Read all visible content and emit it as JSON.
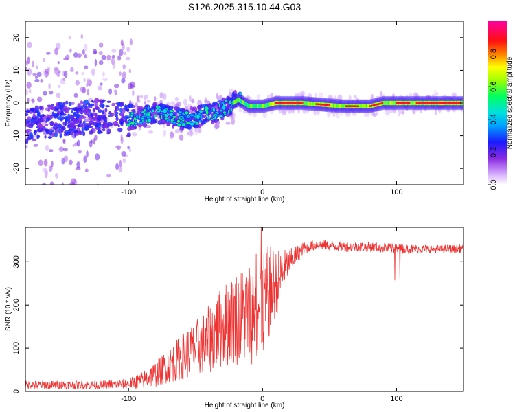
{
  "title": "S126.2025.315.10.44.G03",
  "chart_data": [
    {
      "type": "heatmap",
      "xlabel": "Height of straight line (km)",
      "ylabel": "Frequency (Hz)",
      "xlim": [
        -177,
        150
      ],
      "ylim": [
        -25,
        25
      ],
      "xticks": [
        -100,
        0,
        100
      ],
      "yticks": [
        -20,
        -10,
        0,
        10,
        20
      ],
      "colorbar": {
        "label": "Normalized spectral amplitude",
        "range": [
          0,
          1
        ],
        "ticks": [
          0.0,
          0.2,
          0.4,
          0.6,
          0.8
        ]
      },
      "ridge": {
        "description_points_x": [
          -177,
          -150,
          -120,
          -100,
          -80,
          -60,
          -45,
          -30,
          -18,
          -10,
          0,
          10,
          30,
          60,
          80,
          90,
          100,
          120,
          150
        ],
        "description_points_freq": [
          -7,
          -5,
          -4,
          -5,
          -3,
          -5,
          -4,
          -2,
          1,
          -1,
          -1,
          0,
          0,
          -1,
          -1,
          0,
          0,
          0,
          0
        ]
      }
    },
    {
      "type": "line",
      "xlabel": "Height of straight line (km)",
      "ylabel": "SNR (10 * v/v)",
      "xlim": [
        -177,
        150
      ],
      "ylim": [
        0,
        380
      ],
      "xticks": [
        -100,
        0,
        100
      ],
      "yticks": [
        0,
        100,
        200,
        300
      ],
      "color": "#ee3333",
      "series": [
        {
          "name": "SNR",
          "envelope_x": [
            -177,
            -150,
            -120,
            -100,
            -90,
            -80,
            -70,
            -60,
            -50,
            -40,
            -30,
            -20,
            -10,
            0,
            5,
            10,
            20,
            30,
            40,
            60,
            80,
            100,
            120,
            150
          ],
          "envelope_mean": [
            15,
            15,
            15,
            18,
            25,
            40,
            60,
            80,
            100,
            120,
            150,
            170,
            180,
            200,
            230,
            250,
            300,
            330,
            340,
            335,
            335,
            330,
            330,
            330
          ],
          "envelope_spread": [
            10,
            10,
            10,
            12,
            20,
            30,
            40,
            55,
            65,
            80,
            95,
            110,
            120,
            130,
            110,
            80,
            30,
            15,
            12,
            12,
            12,
            12,
            10,
            10
          ]
        }
      ]
    }
  ]
}
